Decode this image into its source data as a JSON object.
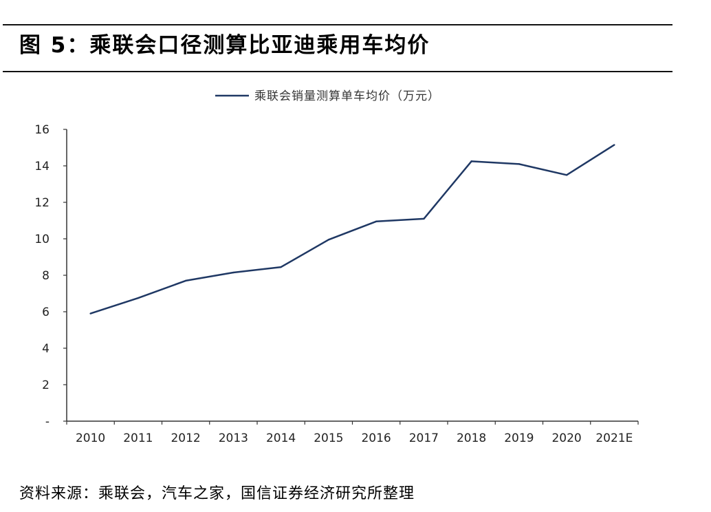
{
  "title": "图 5：乘联会口径测算比亚迪乘用车均价",
  "source": "资料来源：乘联会，汽车之家，国信证券经济研究所整理",
  "chart_data": {
    "type": "line",
    "categories": [
      "2010",
      "2011",
      "2012",
      "2013",
      "2014",
      "2015",
      "2016",
      "2017",
      "2018",
      "2019",
      "2020",
      "2021E"
    ],
    "series": [
      {
        "name": "乘联会销量测算单车均价（万元）",
        "color": "#1f3864",
        "values": [
          5.9,
          6.75,
          7.7,
          8.15,
          8.45,
          9.95,
          10.95,
          11.1,
          14.25,
          14.1,
          13.5,
          15.15
        ]
      }
    ],
    "y_ticks": [
      "-",
      "2",
      "4",
      "6",
      "8",
      "10",
      "12",
      "14",
      "16"
    ],
    "ylim": [
      0,
      16
    ],
    "legend_position": "top-center",
    "grid": false
  }
}
